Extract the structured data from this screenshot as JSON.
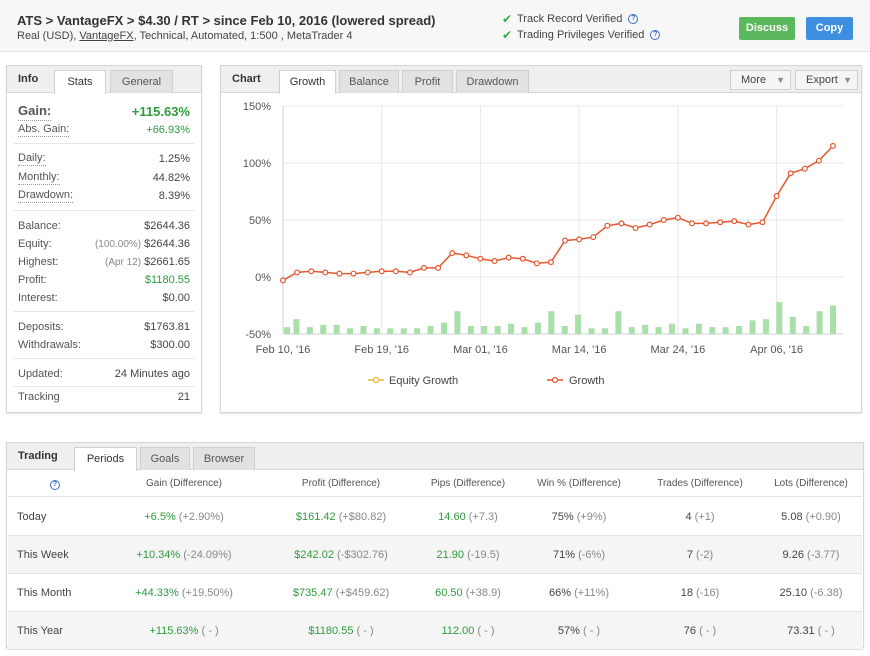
{
  "header": {
    "title": "ATS > VantageFX > $4.30 / RT > since Feb 10, 2016 (lowered spread)",
    "sub_prefix": "Real (USD), ",
    "sub_broker": "VantageFX",
    "sub_suffix": ", Technical, Automated, 1:500 , MetaTrader 4",
    "verified_1": "Track Record Verified",
    "verified_2": "Trading Privileges Verified",
    "discuss_label": "Discuss",
    "copy_label": "Copy"
  },
  "info": {
    "title": "Info",
    "tabs": [
      "Stats",
      "General"
    ],
    "gain_label": "Gain:",
    "gain_value": "+115.63%",
    "abs_gain_label": "Abs. Gain:",
    "abs_gain_value": "+66.93%",
    "daily_label": "Daily:",
    "daily_value": "1.25%",
    "monthly_label": "Monthly:",
    "monthly_value": "44.82%",
    "drawdown_label": "Drawdown:",
    "drawdown_value": "8.39%",
    "balance_label": "Balance:",
    "balance_value": "$2644.36",
    "equity_label": "Equity:",
    "equity_pre": "(100.00%)",
    "equity_value": "$2644.36",
    "highest_label": "Highest:",
    "highest_pre": "(Apr 12)",
    "highest_value": "$2661.65",
    "profit_label": "Profit:",
    "profit_value": "$1180.55",
    "interest_label": "Interest:",
    "interest_value": "$0.00",
    "deposits_label": "Deposits:",
    "deposits_value": "$1763.81",
    "withdrawals_label": "Withdrawals:",
    "withdrawals_value": "$300.00",
    "updated_label": "Updated:",
    "updated_value": "24 Minutes ago",
    "tracking_label": "Tracking",
    "tracking_value": "21"
  },
  "chart": {
    "title": "Chart",
    "tabs": [
      "Growth",
      "Balance",
      "Profit",
      "Drawdown"
    ],
    "more_label": "More",
    "export_label": "Export",
    "colors": {
      "growth": "#e4572e",
      "equity": "#f2b632",
      "bars": "#a9dfa9"
    }
  },
  "chart_data": {
    "type": "line",
    "ylim": [
      -50,
      150
    ],
    "y_ticks": [
      "150%",
      "100%",
      "50%",
      "0%",
      "-50%"
    ],
    "y_tick_values": [
      150,
      100,
      50,
      0,
      -50
    ],
    "x_tick_labels": [
      "Feb 10, '16",
      "Feb 19, '16",
      "Mar 01, '16",
      "Mar 14, '16",
      "Mar 24, '16",
      "Apr 06, '16"
    ],
    "x_tick_index": [
      0,
      7,
      14,
      21,
      28,
      35
    ],
    "legend": [
      "Equity Growth",
      "Growth"
    ],
    "legend_position": "bottom",
    "series": [
      {
        "name": "Growth",
        "values": [
          -3,
          4,
          5,
          4,
          3,
          3,
          4,
          5,
          5,
          4,
          8,
          8,
          21,
          19,
          16,
          14,
          17,
          16,
          12,
          13,
          32,
          33,
          35,
          45,
          47,
          43,
          46,
          50,
          52,
          47,
          47,
          48,
          49,
          46,
          48,
          71,
          91,
          95,
          102,
          115
        ]
      }
    ],
    "bars_values": [
      -44,
      -37,
      -44,
      -42,
      -42,
      -45,
      -43,
      -45,
      -45,
      -45,
      -45,
      -43,
      -40,
      -30,
      -43,
      -43,
      -43,
      -41,
      -44,
      -40,
      -30,
      -43,
      -33,
      -45,
      -45,
      -30,
      -44,
      -42,
      -44,
      -41,
      -45,
      -41,
      -44,
      -44,
      -43,
      -38,
      -37,
      -22,
      -35,
      -43,
      -30,
      -25
    ]
  },
  "trading": {
    "title": "Trading",
    "tabs": [
      "Periods",
      "Goals",
      "Browser"
    ],
    "headers": [
      "Gain (Difference)",
      "Profit (Difference)",
      "Pips (Difference)",
      "Win % (Difference)",
      "Trades (Difference)",
      "Lots (Difference)"
    ],
    "rows": [
      {
        "period": "Today",
        "gain": "+6.5%",
        "gain_d": "(+2.90%)",
        "profit": "$161.42",
        "profit_d": "(+$80.82)",
        "pips": "14.60",
        "pips_d": "(+7.3)",
        "win": "75%",
        "win_d": "(+9%)",
        "trades": "4",
        "trades_d": "(+1)",
        "lots": "5.08",
        "lots_d": "(+0.90)"
      },
      {
        "period": "This Week",
        "gain": "+10.34%",
        "gain_d": "(-24.09%)",
        "profit": "$242.02",
        "profit_d": "(-$302.76)",
        "pips": "21.90",
        "pips_d": "(-19.5)",
        "win": "71%",
        "win_d": "(-6%)",
        "trades": "7",
        "trades_d": "(-2)",
        "lots": "9.26",
        "lots_d": "(-3.77)"
      },
      {
        "period": "This Month",
        "gain": "+44.33%",
        "gain_d": "(+19.50%)",
        "profit": "$735.47",
        "profit_d": "(+$459.62)",
        "pips": "60.50",
        "pips_d": "(+38.9)",
        "win": "66%",
        "win_d": "(+11%)",
        "trades": "18",
        "trades_d": "(-16)",
        "lots": "25.10",
        "lots_d": "(-6.38)"
      },
      {
        "period": "This Year",
        "gain": "+115.63%",
        "gain_d": "( - )",
        "profit": "$1180.55",
        "profit_d": "( - )",
        "pips": "112.00",
        "pips_d": "( - )",
        "win": "57%",
        "win_d": "( - )",
        "trades": "76",
        "trades_d": "( - )",
        "lots": "73.31",
        "lots_d": "( - )"
      }
    ]
  }
}
